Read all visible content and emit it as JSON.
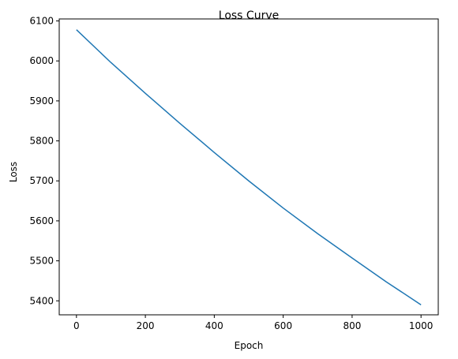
{
  "chart_data": {
    "type": "line",
    "title": "Loss Curve",
    "xlabel": "Epoch",
    "ylabel": "Loss",
    "xlim": [
      -50,
      1050
    ],
    "ylim": [
      5365,
      6105
    ],
    "xticks": [
      0,
      200,
      400,
      600,
      800,
      1000
    ],
    "yticks": [
      5400,
      5500,
      5600,
      5700,
      5800,
      5900,
      6000,
      6100
    ],
    "grid": false,
    "series": [
      {
        "color": "#1f77b4",
        "x": [
          0,
          100,
          200,
          300,
          400,
          500,
          600,
          700,
          800,
          900,
          1000
        ],
        "y": [
          6078,
          5996,
          5919,
          5844,
          5771,
          5700,
          5632,
          5568,
          5507,
          5447,
          5390
        ]
      }
    ]
  }
}
